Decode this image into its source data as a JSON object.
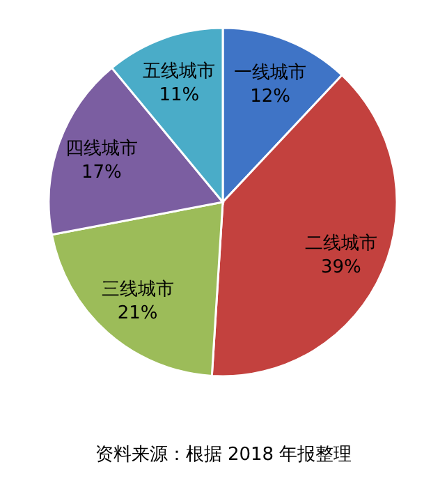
{
  "chart_data": {
    "type": "pie",
    "categories": [
      "一线城市",
      "二线城市",
      "三线城市",
      "四线城市",
      "五线城市"
    ],
    "values": [
      12,
      39,
      21,
      17,
      11
    ],
    "colors": [
      "#3f74c6",
      "#c3413e",
      "#9cbc59",
      "#7b5ea1",
      "#4aacc8"
    ],
    "value_labels": [
      "12%",
      "39%",
      "21%",
      "17%",
      "11%"
    ],
    "annotations": [
      "资料来源：根据 2018 年报整理"
    ]
  }
}
